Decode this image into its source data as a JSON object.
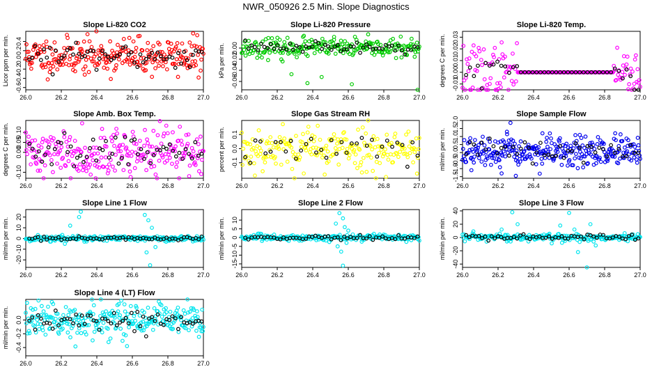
{
  "title": "NWR_050926  2.5 Min. Slope Diagnostics",
  "colors": {
    "red": "#ff0000",
    "green": "#00cc00",
    "magenta": "#ff00ff",
    "yellow": "#ffff00",
    "blue": "#0000ee",
    "cyan": "#00e5ee",
    "overlay": "#000000"
  },
  "x_ticks": [
    "26.0",
    "26.2",
    "26.4",
    "26.6",
    "26.8",
    "27.0"
  ],
  "chart_data": [
    {
      "type": "scatter",
      "title": "Slope Li-820 CO2",
      "ylabel": "Licor ppm per min.",
      "xlim": [
        26.0,
        27.0
      ],
      "ylim": [
        -0.65,
        0.62
      ],
      "yticks": [
        -0.6,
        -0.4,
        -0.2,
        0.0,
        0.2,
        0.4
      ],
      "yticklabels": [
        "-0.6",
        "-0.4",
        "-0.2",
        "0.0",
        "0.2",
        "0.4"
      ],
      "color": "red",
      "center": 0.08,
      "spread": 0.2,
      "n": 260,
      "k": 60,
      "pattern": "noise",
      "seed": 11
    },
    {
      "type": "scatter",
      "title": "Slope Li-820 Pressure",
      "ylabel": "kPa per min.",
      "xlim": [
        26.0,
        27.0
      ],
      "ylim": [
        -0.075,
        0.03
      ],
      "yticks": [
        -0.06,
        -0.04,
        -0.02,
        0.0
      ],
      "yticklabels": [
        "-0.06",
        "-0.04",
        "-0.02",
        "0.00"
      ],
      "color": "green",
      "center": 0.0,
      "spread": 0.008,
      "n": 230,
      "k": 55,
      "pattern": "noise",
      "seed": 23,
      "outliers": [
        [
          26.23,
          -0.024
        ],
        [
          26.28,
          -0.047
        ],
        [
          26.37,
          -0.063
        ],
        [
          26.45,
          -0.052
        ],
        [
          26.62,
          -0.065
        ],
        [
          26.35,
          0.022
        ],
        [
          26.52,
          0.02
        ],
        [
          26.15,
          0.018
        ],
        [
          26.99,
          -0.075
        ]
      ]
    },
    {
      "type": "scatter",
      "title": "Slope Li-820 Temp.",
      "ylabel": "degrees C per min.",
      "xlim": [
        26.0,
        27.0
      ],
      "ylim": [
        -0.015,
        0.035
      ],
      "yticks": [
        -0.01,
        0.0,
        0.01,
        0.02,
        0.03
      ],
      "yticklabels": [
        "-0.01",
        "0.00",
        "0.01",
        "0.02",
        "0.03"
      ],
      "color": "magenta",
      "center": 0.0,
      "spread": 0.012,
      "n": 210,
      "k": 45,
      "pattern": "flat",
      "flat": [
        26.31,
        26.85
      ],
      "seed": 37
    },
    {
      "type": "scatter",
      "title": "Slope Amb. Box Temp.",
      "ylabel": "degrees C per min.",
      "xlim": [
        26.0,
        27.0
      ],
      "ylim": [
        -0.13,
        0.16
      ],
      "yticks": [
        -0.1,
        0.0,
        0.05,
        0.1
      ],
      "yticklabels": [
        "-0.10",
        "0.00",
        "0.05",
        "0.10"
      ],
      "color": "magenta",
      "center": 0.0,
      "spread": 0.06,
      "n": 250,
      "k": 55,
      "pattern": "noise",
      "seed": 41
    },
    {
      "type": "scatter",
      "title": "Slope Gas Stream RH",
      "ylabel": "percent per min.",
      "xlim": [
        26.0,
        27.0
      ],
      "ylim": [
        -0.21,
        0.2
      ],
      "yticks": [
        -0.1,
        0.0,
        0.1
      ],
      "yticklabels": [
        "-0.1",
        "0.0",
        "0.1"
      ],
      "color": "yellow",
      "center": 0.0,
      "spread": 0.08,
      "n": 230,
      "k": 35,
      "pattern": "noise",
      "seed": 53
    },
    {
      "type": "scatter",
      "title": "Slope Sample Flow",
      "ylabel": "ml/min per min.",
      "xlim": [
        26.0,
        27.0
      ],
      "ylim": [
        -1.6,
        2.0
      ],
      "yticks": [
        -1.5,
        -1.0,
        -0.5,
        0.0,
        0.5,
        1.0,
        1.5,
        2.0
      ],
      "yticklabels": [
        "-1.5",
        "-1.0",
        "-0.5",
        "0.0",
        "0.5",
        "1.0",
        "1.5",
        "2.0"
      ],
      "color": "blue",
      "center": 0.0,
      "spread": 0.45,
      "n": 300,
      "k": 45,
      "pattern": "noise",
      "seed": 67,
      "outliers": [
        [
          26.27,
          1.85
        ],
        [
          26.25,
          1.3
        ],
        [
          26.22,
          -1.3
        ],
        [
          26.05,
          -1.1
        ],
        [
          26.45,
          1.2
        ],
        [
          26.66,
          1.1
        ],
        [
          26.3,
          -1.45
        ]
      ]
    },
    {
      "type": "scatter",
      "title": "Slope Line 1 Flow",
      "ylabel": "ml/min per min.",
      "xlim": [
        26.0,
        27.0
      ],
      "ylim": [
        -27,
        27
      ],
      "yticks": [
        -20,
        -10,
        0,
        10,
        20
      ],
      "yticklabels": [
        "-20",
        "-10",
        "0",
        "10",
        "20"
      ],
      "color": "cyan",
      "center": 0.0,
      "spread": 1.4,
      "n": 220,
      "k": 60,
      "pattern": "noise",
      "seed": 71,
      "outliers": [
        [
          26.25,
          12
        ],
        [
          26.3,
          20
        ],
        [
          26.31,
          25
        ],
        [
          26.22,
          -5
        ],
        [
          26.67,
          22
        ],
        [
          26.69,
          17
        ],
        [
          26.71,
          10
        ],
        [
          26.7,
          -25
        ],
        [
          26.68,
          -13
        ],
        [
          26.73,
          -8
        ],
        [
          26.33,
          -3
        ]
      ]
    },
    {
      "type": "scatter",
      "title": "Slope Line 2 Flow",
      "ylabel": "ml/min per min.",
      "xlim": [
        26.0,
        27.0
      ],
      "ylim": [
        -17,
        16
      ],
      "yticks": [
        -15,
        -10,
        -5,
        0,
        5,
        10
      ],
      "yticklabels": [
        "-15",
        "-10",
        "-5",
        "0",
        "5",
        "10"
      ],
      "color": "cyan",
      "center": 0.0,
      "spread": 0.9,
      "n": 220,
      "k": 55,
      "pattern": "noise",
      "seed": 83,
      "outliers": [
        [
          26.55,
          14
        ],
        [
          26.57,
          11
        ],
        [
          26.53,
          8
        ],
        [
          26.58,
          6
        ],
        [
          26.56,
          -8
        ],
        [
          26.57,
          -16
        ],
        [
          26.54,
          -5
        ],
        [
          26.6,
          4
        ],
        [
          26.59,
          -3
        ]
      ]
    },
    {
      "type": "scatter",
      "title": "Slope Line 3 Flow",
      "ylabel": "ml/min per min.",
      "xlim": [
        26.0,
        27.0
      ],
      "ylim": [
        -45,
        42
      ],
      "yticks": [
        -40,
        -20,
        0,
        20,
        40
      ],
      "yticklabels": [
        "-40",
        "-20",
        "0",
        "20",
        "40"
      ],
      "color": "cyan",
      "center": 0.0,
      "spread": 3.0,
      "n": 230,
      "k": 55,
      "pattern": "noise",
      "seed": 97,
      "outliers": [
        [
          26.28,
          38
        ],
        [
          26.31,
          20
        ],
        [
          26.25,
          -6
        ],
        [
          26.22,
          12
        ],
        [
          26.55,
          18
        ],
        [
          26.6,
          37
        ],
        [
          26.56,
          -8
        ],
        [
          26.65,
          -22
        ],
        [
          26.7,
          -45
        ],
        [
          26.72,
          20
        ],
        [
          26.75,
          -12
        ],
        [
          26.63,
          12
        ]
      ]
    },
    {
      "type": "scatter",
      "title": "Slope Line 4 (LT) Flow",
      "ylabel": "ml/min per min.",
      "xlim": [
        26.0,
        27.0
      ],
      "ylim": [
        -0.52,
        0.3
      ],
      "yticks": [
        -0.4,
        -0.2,
        0.0
      ],
      "yticklabels": [
        "-0.4",
        "-0.2",
        "0.0"
      ],
      "color": "cyan",
      "center": 0.0,
      "spread": 0.13,
      "n": 280,
      "k": 60,
      "pattern": "noise",
      "seed": 109
    }
  ]
}
